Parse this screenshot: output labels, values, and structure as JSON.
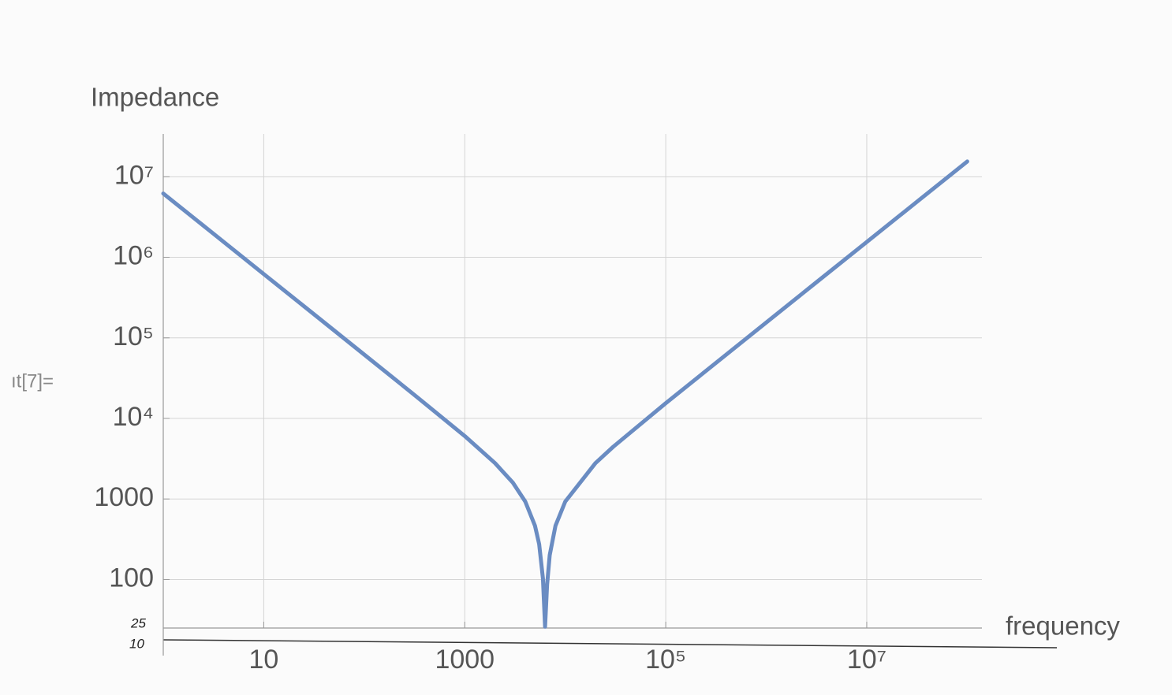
{
  "chart_data": {
    "type": "line",
    "y_label": "Impedance",
    "x_label": "frequency",
    "annotations": [
      "ıt[7]=",
      "25",
      "10"
    ],
    "log_x": true,
    "log_y": true,
    "grid": true,
    "color": "#6a8cc2",
    "x": [
      1,
      3,
      10,
      30,
      100,
      300,
      1000,
      2000,
      3000,
      4000,
      5000,
      5500,
      6000,
      6300,
      6600,
      7000,
      8000,
      10000,
      20000,
      30000,
      100000,
      300000,
      1000000,
      3000000,
      10000000,
      30000000,
      100000000
    ],
    "values": [
      6200000,
      2067000,
      620000,
      206700,
      61980,
      20620,
      6045,
      2790,
      1602,
      930,
      465,
      275,
      103,
      26,
      87,
      201,
      465,
      930,
      2790,
      4443,
      15440,
      46480,
      155000,
      465000,
      1550000,
      4650000,
      15500000
    ],
    "xlim": [
      1,
      140000000
    ],
    "ylim": [
      25,
      34000000
    ],
    "xticks": [
      10,
      1000,
      {
        "value": 100000,
        "label": "10⁵"
      },
      {
        "value": 10000000,
        "label": "10⁷"
      }
    ],
    "yticks": [
      100,
      1000,
      {
        "value": 10000,
        "label": "10⁴"
      },
      {
        "value": 100000,
        "label": "10⁵"
      },
      {
        "value": 1000000,
        "label": "10⁶"
      },
      {
        "value": 10000000,
        "label": "10⁷"
      }
    ]
  }
}
